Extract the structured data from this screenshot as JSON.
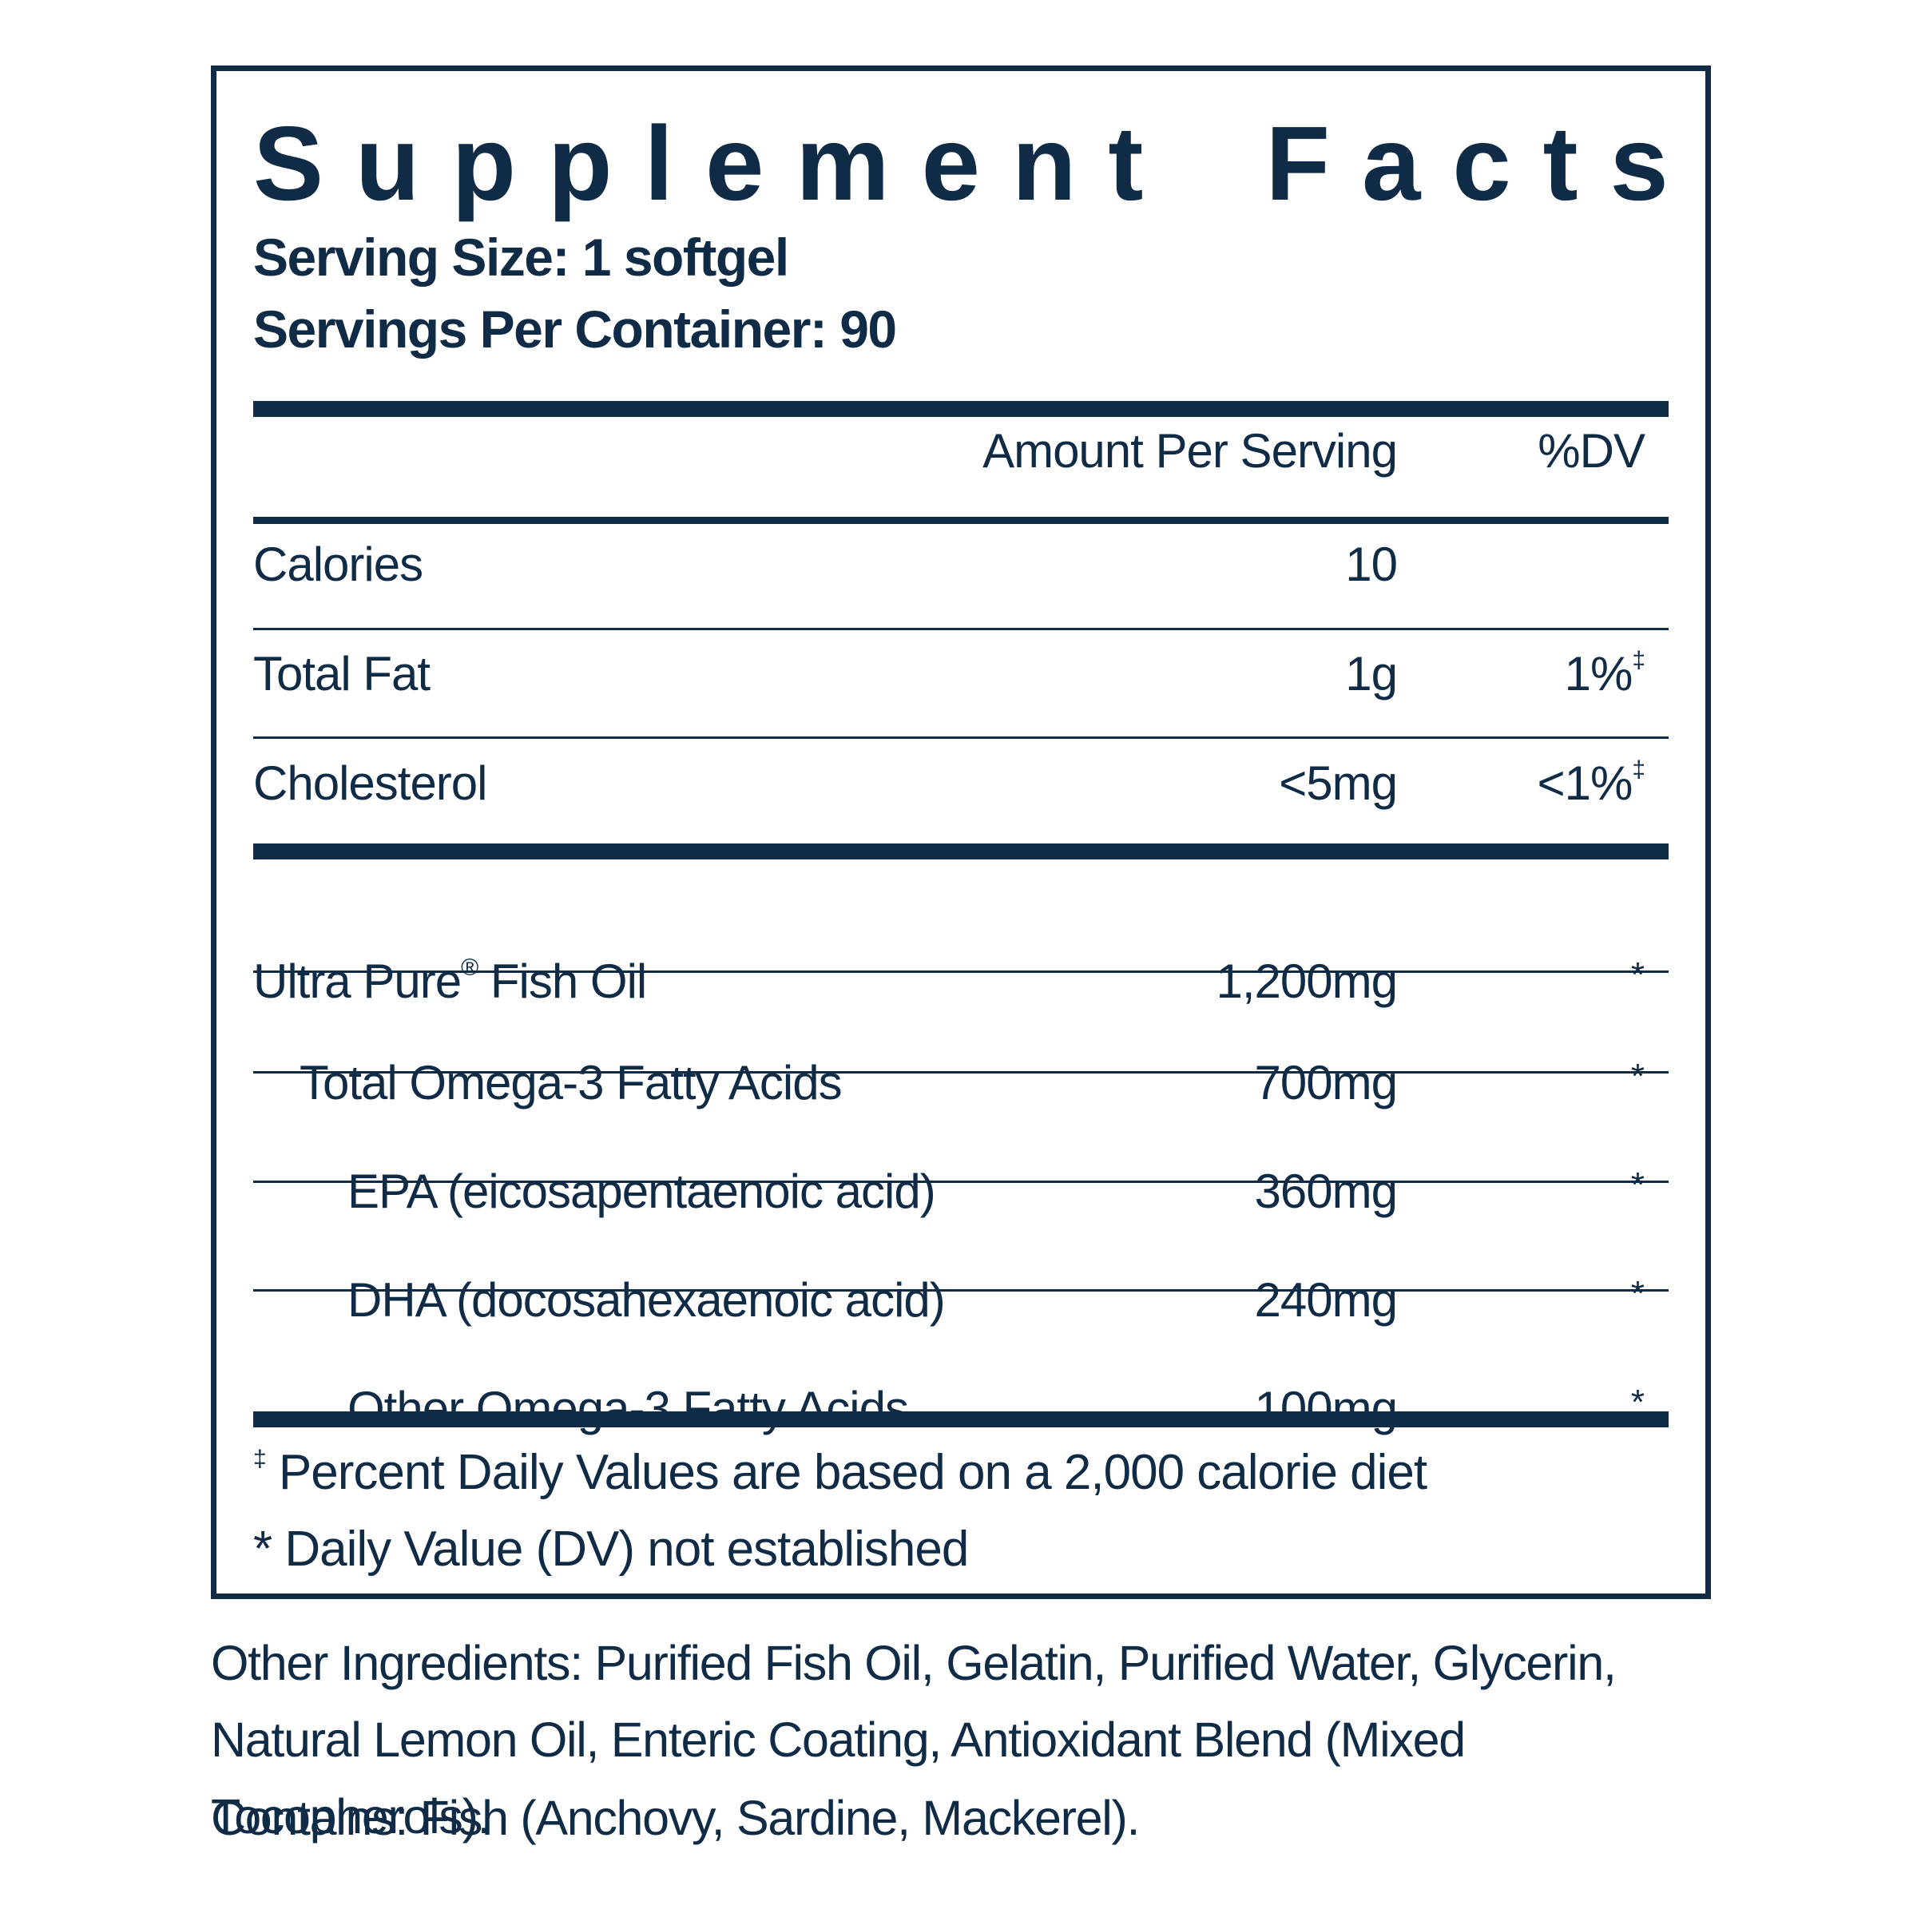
{
  "title": "Supplement Facts",
  "serving_size": "Serving Size: 1 softgel",
  "servings_per_container": "Servings Per Container: 90",
  "header": {
    "amount": "Amount Per Serving",
    "dv": "%DV"
  },
  "rows": [
    {
      "name": "Calories",
      "amount": "10",
      "dv": ""
    },
    {
      "name": "Total Fat",
      "amount": "1g",
      "dv": "1%",
      "dv_mark": "‡"
    },
    {
      "name": "Cholesterol",
      "amount": "<5mg",
      "dv": "<1%",
      "dv_mark": "‡"
    },
    {
      "name": "Ultra Pure",
      "name_mark": "®",
      "name_suffix": " Fish Oil",
      "amount": "1,200mg",
      "dv": "*"
    },
    {
      "name": "Total Omega-3 Fatty Acids",
      "amount": "700mg",
      "dv": "*"
    },
    {
      "name": "EPA (eicosapentaenoic acid)",
      "amount": "360mg",
      "dv": "*"
    },
    {
      "name": "DHA (docosahexaenoic acid)",
      "amount": "240mg",
      "dv": "*"
    },
    {
      "name": "Other Omega-3 Fatty Acids",
      "amount": "100mg",
      "dv": "*"
    }
  ],
  "footnotes": {
    "dagger_mark": "‡",
    "dagger_text": " Percent Daily Values are based on a 2,000 calorie diet",
    "star_text": "* Daily Value (DV) not established"
  },
  "other_ingredients": "Other Ingredients: Purified Fish Oil, Gelatin, Purified Water, Glycerin, Natural Lemon Oil, Enteric Coating, Antioxidant Blend (Mixed Tocopherols).",
  "contains": "Contains: Fish (Anchovy, Sardine, Mackerel).",
  "colors": {
    "text": "#0f2b46",
    "background": "#ffffff"
  }
}
